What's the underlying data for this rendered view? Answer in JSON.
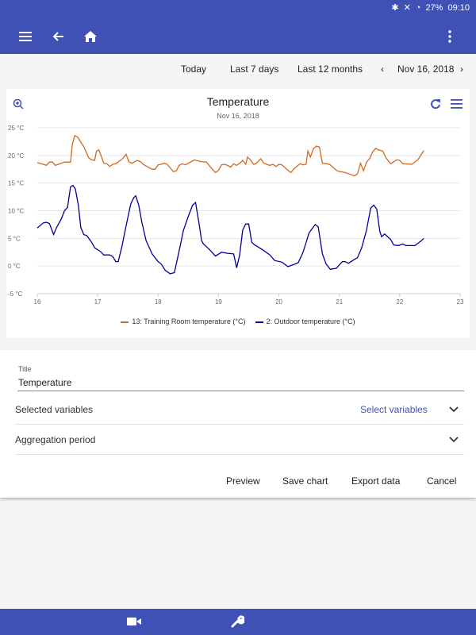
{
  "status": {
    "battery": "27%",
    "time": "09:10"
  },
  "toolbar": {
    "range_buttons": [
      "Today",
      "Last 7 days",
      "Last 12 months"
    ],
    "date": "Nov 16, 2018"
  },
  "colors": {
    "primary": "#3f51b5",
    "series1": "#d2691e",
    "series2": "#000099"
  },
  "chart_data": {
    "type": "line",
    "title": "Temperature",
    "subtitle": "Nov 16, 2018",
    "xlim": [
      16,
      23
    ],
    "ylim": [
      -5,
      25
    ],
    "xticks": [
      "16",
      "17",
      "18",
      "19",
      "20",
      "21",
      "22",
      "23"
    ],
    "yticks": [
      "-5 °C",
      "0 °C",
      "5 °C",
      "10 °C",
      "15 °C",
      "20 °C",
      "25 °C"
    ],
    "legend_position": "bottom",
    "series": [
      {
        "name": "13: Training Room temperature (°C)",
        "x": [
          16,
          16.1,
          16.15,
          16.2,
          16.25,
          16.3,
          16.35,
          16.45,
          16.55,
          16.58,
          16.62,
          16.67,
          16.72,
          16.77,
          16.85,
          16.9,
          16.95,
          16.98,
          17.02,
          17.1,
          17.15,
          17.2,
          17.25,
          17.3,
          17.4,
          17.47,
          17.52,
          17.57,
          17.65,
          17.72,
          17.75,
          17.85,
          17.9,
          17.95,
          18,
          18.05,
          18.1,
          18.15,
          18.25,
          18.3,
          18.35,
          18.4,
          18.45,
          18.5,
          18.6,
          18.7,
          18.8,
          18.9,
          18.95,
          19,
          19.05,
          19.1,
          19.15,
          19.2,
          19.25,
          19.3,
          19.35,
          19.4,
          19.45,
          19.48,
          19.52,
          19.58,
          19.62,
          19.7,
          19.75,
          19.85,
          19.9,
          19.95,
          20,
          20.05,
          20.15,
          20.2,
          20.25,
          20.35,
          20.4,
          20.45,
          20.48,
          20.52,
          20.57,
          20.62,
          20.67,
          20.72,
          20.8,
          20.85,
          20.95,
          21,
          21.1,
          21.2,
          21.25,
          21.3,
          21.35,
          21.4,
          21.45,
          21.5,
          21.55,
          21.6,
          21.65,
          21.72,
          21.77,
          21.85,
          21.95,
          22,
          22.05,
          22.2,
          22.3,
          22.4
        ],
        "y": [
          18.7,
          18.4,
          18.2,
          18.8,
          18.8,
          18.2,
          18.4,
          18.8,
          18.8,
          22,
          23.6,
          23.3,
          22.4,
          21.6,
          19.6,
          19.2,
          19.1,
          20.8,
          21,
          18.6,
          18.5,
          18,
          18.4,
          18.5,
          19.3,
          20.2,
          18.8,
          18.6,
          19.1,
          18.8,
          18.4,
          17.8,
          17.5,
          17.5,
          18.3,
          18.4,
          18.6,
          18.4,
          17.1,
          17.2,
          18.2,
          18.5,
          18.3,
          18.6,
          19.2,
          18.9,
          18.8,
          17.5,
          16.9,
          17.3,
          18.3,
          18.4,
          18.2,
          17.9,
          18.5,
          18.2,
          18.6,
          19.1,
          18.4,
          19.7,
          19.3,
          18.4,
          18.5,
          19.4,
          18.6,
          18.2,
          18.4,
          18,
          18.4,
          18.3,
          17.3,
          16.9,
          17.6,
          18.5,
          18.3,
          18.4,
          20.8,
          19.7,
          21.2,
          21.7,
          21.5,
          18.6,
          18.5,
          18.3,
          17.3,
          17.1,
          16.9,
          16.5,
          16.3,
          16.7,
          18.6,
          17.2,
          18.8,
          19.4,
          20.6,
          21.3,
          21,
          20.8,
          19.6,
          18.5,
          19.2,
          19.1,
          18.5,
          18.4,
          19.2,
          20.9
        ]
      },
      {
        "name": "2: Outdoor temperature (°C)",
        "x": [
          16,
          16.1,
          16.15,
          16.2,
          16.27,
          16.32,
          16.4,
          16.45,
          16.5,
          16.55,
          16.59,
          16.63,
          16.68,
          16.72,
          16.77,
          16.82,
          16.9,
          16.95,
          17.05,
          17.1,
          17.2,
          17.25,
          17.3,
          17.34,
          17.4,
          17.45,
          17.5,
          17.55,
          17.6,
          17.63,
          17.68,
          17.73,
          17.8,
          17.9,
          18,
          18.05,
          18.12,
          18.2,
          18.27,
          18.35,
          18.42,
          18.5,
          18.57,
          18.62,
          18.68,
          18.72,
          18.75,
          18.85,
          18.95,
          19.05,
          19.15,
          19.25,
          19.3,
          19.35,
          19.4,
          19.45,
          19.5,
          19.55,
          19.6,
          19.65,
          19.75,
          19.85,
          19.93,
          20.05,
          20.15,
          20.25,
          20.32,
          20.4,
          20.5,
          20.6,
          20.65,
          20.72,
          20.78,
          20.85,
          20.95,
          21.05,
          21.1,
          21.15,
          21.25,
          21.3,
          21.37,
          21.45,
          21.52,
          21.57,
          21.62,
          21.67,
          21.7,
          21.75,
          21.85,
          21.9,
          21.98,
          22.05,
          22.1,
          22.25,
          22.35,
          22.4
        ],
        "y": [
          6.9,
          7.8,
          7.9,
          7.7,
          5.7,
          7,
          8.6,
          10,
          10.6,
          14.3,
          14.6,
          13.9,
          11,
          7,
          5.7,
          5.5,
          4.3,
          3.3,
          2.6,
          2,
          2,
          1.7,
          0.8,
          0.8,
          3.5,
          6.2,
          8.8,
          11.3,
          12.4,
          12.7,
          11,
          8,
          4.6,
          2.2,
          0.8,
          0.4,
          -0.8,
          -1.4,
          -1.2,
          2.8,
          6.5,
          9,
          11,
          11.5,
          7.5,
          4.6,
          4,
          3,
          1.8,
          2.5,
          2.3,
          2.2,
          -0.3,
          2,
          6.5,
          7.6,
          7.6,
          4.3,
          3.8,
          3.5,
          2.8,
          2,
          1,
          0.7,
          -0.1,
          0.3,
          0.6,
          2.5,
          6,
          7.5,
          7.1,
          2.2,
          0.4,
          -0.6,
          -0.4,
          0.8,
          0.8,
          0.5,
          1.2,
          1.5,
          3.3,
          6.5,
          10.5,
          11,
          10.3,
          6.3,
          5.3,
          5.8,
          4.8,
          3.8,
          3.7,
          4,
          3.7,
          3.7,
          4.5,
          5
        ]
      }
    ]
  },
  "form": {
    "title_label": "Title",
    "title_value": "Temperature",
    "selected_variables": "Selected variables",
    "select_variables_link": "Select variables",
    "aggregation_period": "Aggregation period"
  },
  "actions": [
    "Preview",
    "Save chart",
    "Export data",
    "Cancel"
  ]
}
